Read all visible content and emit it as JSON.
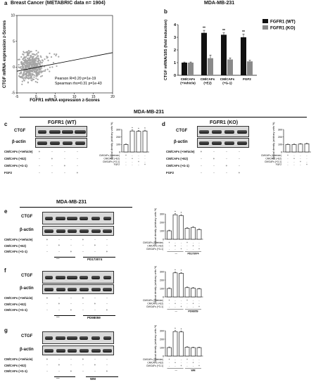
{
  "panel_a": {
    "letter": "a",
    "title": "Breast Cancer (METABRIC data n= 1904)",
    "ylabel": "CTGF mRNA expression z-Scores",
    "xlabel": "FGFR1 mRNA expression z-Scores",
    "pearson": "Pearson R=0.20 p=1e-19",
    "spearman": "Spearman rho=0.31 p=1e-43",
    "xticks": [
      "-5",
      "0",
      "5",
      "10",
      "15",
      "20"
    ],
    "yticks": [
      "-5",
      "0",
      "5",
      "10"
    ]
  },
  "panel_b": {
    "letter": "b",
    "title": "MDA-MB-231",
    "ylabel": "CTGF mRNA/18S (fold induction)",
    "legend": [
      "FGFR1 (WT)",
      "FGFR1 (KO)"
    ],
    "groups": [
      "CM/CAFs (+Vehicle)",
      "CM/CAFs (+E2)",
      "CM/CAFs (+G-1)",
      "FGF2"
    ],
    "yticks": [
      "0",
      "1",
      "2",
      "3",
      "4"
    ],
    "stars": "**"
  },
  "cd_title": "MDA-MB-231",
  "panel_c": {
    "letter": "c",
    "title": "FGFR1 (WT)",
    "ctgf": "CTGF",
    "actin": "β-actin",
    "conditions": [
      "CM/CAFs (+Vehicle)",
      "CM/CAFs (+E2)",
      "CM/CAFs (+G-1)",
      "FGF2"
    ],
    "signs": [
      [
        "+",
        "-",
        "-",
        "-"
      ],
      [
        "-",
        "+",
        "-",
        "-"
      ],
      [
        "-",
        "-",
        "+",
        "-"
      ],
      [
        "-",
        "-",
        "-",
        "+"
      ]
    ],
    "chart_ylabel": "Optical density (arbitrary units %)",
    "chart_yticks": [
      "0",
      "100",
      "200",
      "300"
    ],
    "stars": "*"
  },
  "panel_d": {
    "letter": "d",
    "title": "FGFR1 (KO)",
    "ctgf": "CTGF",
    "actin": "β-actin",
    "conditions": [
      "CM/CAFs (+Vehicle)",
      "CM/CAFs (+E2)",
      "CM/CAFs (+G-1)",
      "FGF2"
    ],
    "signs": [
      [
        "+",
        "-",
        "-",
        "-"
      ],
      [
        "-",
        "+",
        "-",
        "-"
      ],
      [
        "-",
        "-",
        "+",
        "-"
      ],
      [
        "-",
        "-",
        "-",
        "+"
      ]
    ],
    "chart_ylabel": "Optical density (arbitrary units %)",
    "chart_yticks": [
      "0",
      "100",
      "200",
      "300"
    ]
  },
  "efg_title": "MDA-MB-231",
  "panel_e": {
    "letter": "e",
    "ctgf": "CTGF",
    "actin": "β-actin",
    "inhibitor": "PD173074",
    "conditions": [
      "CM/CAFs (+Vehicle)",
      "CM/CAFs (+E2)",
      "CM/CAFs (+G-1)"
    ],
    "dash": "—",
    "chart_ylabel": "Optical density (arbitrary units %)",
    "chart_yticks": [
      "0",
      "100",
      "200",
      "300"
    ],
    "stars": "*"
  },
  "panel_f": {
    "letter": "f",
    "ctgf": "CTGF",
    "actin": "β-actin",
    "inhibitor": "PD98059",
    "conditions": [
      "CM/CAFs (+Vehicle)",
      "CM/CAFs (+E2)",
      "CM/CAFs (+G-1)"
    ],
    "dash": "—",
    "chart_ylabel": "Optical density (arbitrary units %)",
    "chart_yticks": [
      "0",
      "100",
      "200",
      "300"
    ],
    "stars": "*"
  },
  "panel_g": {
    "letter": "g",
    "ctgf": "CTGF",
    "actin": "β-actin",
    "inhibitor": "WM",
    "conditions": [
      "CM/CAFs (+Vehicle)",
      "CM/CAFs (+E2)",
      "CM/CAFs (+G-1)"
    ],
    "dash": "—",
    "chart_ylabel": "Optical density (arbitrary units %)",
    "chart_yticks": [
      "0",
      "100",
      "200",
      "300"
    ],
    "stars": "*"
  },
  "six_lane_signs": [
    [
      "+",
      "-",
      "-",
      "+",
      "-",
      "-"
    ],
    [
      "-",
      "+",
      "-",
      "-",
      "+",
      "-"
    ],
    [
      "-",
      "-",
      "+",
      "-",
      "-",
      "+"
    ]
  ],
  "chart_data": [
    {
      "type": "scatter",
      "panel": "a",
      "xlabel": "FGFR1 mRNA expression z-Scores",
      "ylabel": "CTGF mRNA expression z-Scores",
      "xlim": [
        -5,
        20
      ],
      "ylim": [
        -5,
        10
      ],
      "trend_line": [
        [
          -5,
          -0.8
        ],
        [
          20,
          2.8
        ]
      ],
      "correlation": {
        "pearson_r": 0.2,
        "pearson_p": "1e-19",
        "spearman_rho": 0.31,
        "spearman_p": "1e-43"
      }
    },
    {
      "type": "bar",
      "panel": "b",
      "categories": [
        "CM/CAFs (+Vehicle)",
        "CM/CAFs (+E2)",
        "CM/CAFs (+G-1)",
        "FGF2"
      ],
      "series": [
        {
          "name": "FGFR1 (WT)",
          "values": [
            1.0,
            3.35,
            3.2,
            3.0
          ],
          "errors": [
            0.05,
            0.2,
            0.15,
            0.25
          ],
          "color": "#111111"
        },
        {
          "name": "FGFR1 (KO)",
          "values": [
            1.0,
            1.35,
            1.25,
            1.1
          ],
          "errors": [
            0.05,
            0.25,
            0.12,
            0.08
          ],
          "color": "#8a8a8a"
        }
      ],
      "ylim": [
        0,
        4
      ],
      "ylabel": "CTGF mRNA/18S (fold induction)"
    },
    {
      "type": "bar",
      "panel": "c",
      "values": [
        100,
        280,
        275,
        280
      ],
      "errors": [
        8,
        15,
        12,
        10
      ],
      "ylim": [
        0,
        300
      ]
    },
    {
      "type": "bar",
      "panel": "d",
      "values": [
        100,
        100,
        105,
        110
      ],
      "errors": [
        6,
        8,
        7,
        9
      ],
      "ylim": [
        0,
        300
      ]
    },
    {
      "type": "bar",
      "panel": "e",
      "values": [
        100,
        290,
        280,
        130,
        140,
        115
      ],
      "errors": [
        8,
        15,
        12,
        8,
        10,
        8
      ],
      "ylim": [
        0,
        300
      ]
    },
    {
      "type": "bar",
      "panel": "f",
      "values": [
        100,
        285,
        280,
        110,
        105,
        95
      ],
      "errors": [
        8,
        12,
        10,
        8,
        8,
        6
      ],
      "ylim": [
        0,
        300
      ]
    },
    {
      "type": "bar",
      "panel": "g",
      "values": [
        100,
        290,
        285,
        105,
        100,
        100
      ],
      "errors": [
        8,
        14,
        12,
        6,
        6,
        6
      ],
      "ylim": [
        0,
        300
      ]
    }
  ]
}
